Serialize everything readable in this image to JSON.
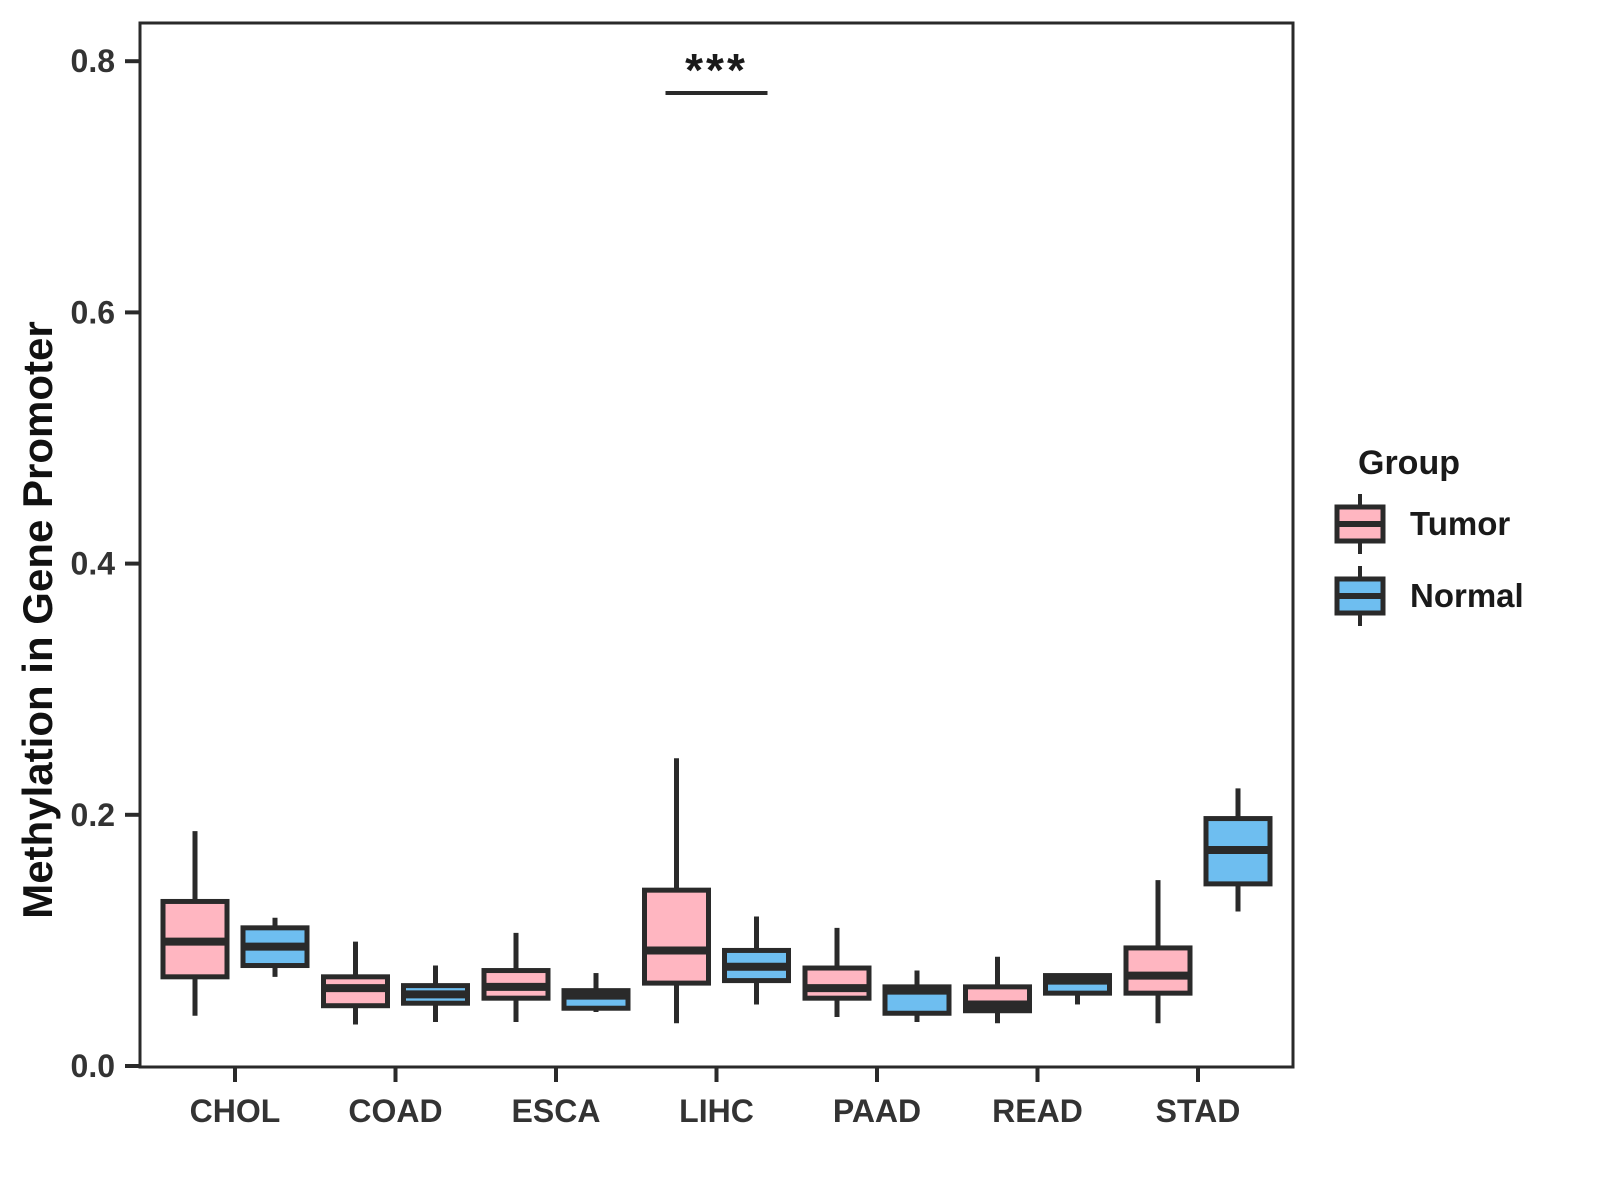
{
  "chart_data": {
    "type": "grouped_boxplot",
    "title": "",
    "xlabel": "",
    "ylabel": "Methylation in Gene Promoter",
    "categories": [
      "CHOL",
      "COAD",
      "ESCA",
      "LIHC",
      "PAAD",
      "READ",
      "STAD"
    ],
    "yticks": [
      0.0,
      0.2,
      0.4,
      0.6,
      0.8
    ],
    "ytick_labels": [
      "0.0",
      "0.2",
      "0.4",
      "0.6",
      "0.8"
    ],
    "ylim": [
      0,
      0.83
    ],
    "grid": "off",
    "legend_position": "right",
    "colors": {
      "line": "#2a2a2a",
      "tick_text": "#333333",
      "tumor": "#FFB6C1",
      "normal": "#6EBEF0"
    },
    "legend": {
      "title": "Group",
      "entries": [
        {
          "label": "Tumor",
          "color": "#FFB6C1"
        },
        {
          "label": "Normal",
          "color": "#6EBEF0"
        }
      ]
    },
    "annotation": {
      "text": "***",
      "category": "LIHC",
      "significance": "p < 0.001"
    },
    "series": [
      {
        "name": "Tumor",
        "color": "#FFB6C1",
        "boxes": [
          {
            "category": "CHOL",
            "min": 0.04,
            "q1": 0.071,
            "med": 0.099,
            "q3": 0.131,
            "max": 0.187
          },
          {
            "category": "COAD",
            "min": 0.033,
            "q1": 0.048,
            "med": 0.062,
            "q3": 0.071,
            "max": 0.099
          },
          {
            "category": "ESCA",
            "min": 0.035,
            "q1": 0.054,
            "med": 0.063,
            "q3": 0.076,
            "max": 0.106
          },
          {
            "category": "LIHC",
            "min": 0.034,
            "q1": 0.066,
            "med": 0.092,
            "q3": 0.14,
            "max": 0.245
          },
          {
            "category": "PAAD",
            "min": 0.039,
            "q1": 0.054,
            "med": 0.062,
            "q3": 0.078,
            "max": 0.11
          },
          {
            "category": "READ",
            "min": 0.034,
            "q1": 0.044,
            "med": 0.049,
            "q3": 0.063,
            "max": 0.087
          },
          {
            "category": "STAD",
            "min": 0.034,
            "q1": 0.058,
            "med": 0.072,
            "q3": 0.094,
            "max": 0.148
          }
        ]
      },
      {
        "name": "Normal",
        "color": "#6EBEF0",
        "boxes": [
          {
            "category": "CHOL",
            "min": 0.071,
            "q1": 0.08,
            "med": 0.095,
            "q3": 0.11,
            "max": 0.118
          },
          {
            "category": "COAD",
            "min": 0.035,
            "q1": 0.05,
            "med": 0.057,
            "q3": 0.064,
            "max": 0.08
          },
          {
            "category": "ESCA",
            "min": 0.043,
            "q1": 0.046,
            "med": 0.056,
            "q3": 0.06,
            "max": 0.074
          },
          {
            "category": "LIHC",
            "min": 0.049,
            "q1": 0.068,
            "med": 0.079,
            "q3": 0.092,
            "max": 0.119
          },
          {
            "category": "PAAD",
            "min": 0.035,
            "q1": 0.042,
            "med": 0.06,
            "q3": 0.063,
            "max": 0.076
          },
          {
            "category": "READ",
            "min": 0.049,
            "q1": 0.058,
            "med": 0.068,
            "q3": 0.072,
            "max": 0.072
          },
          {
            "category": "STAD",
            "min": 0.123,
            "q1": 0.145,
            "med": 0.172,
            "q3": 0.197,
            "max": 0.221
          }
        ]
      }
    ]
  }
}
